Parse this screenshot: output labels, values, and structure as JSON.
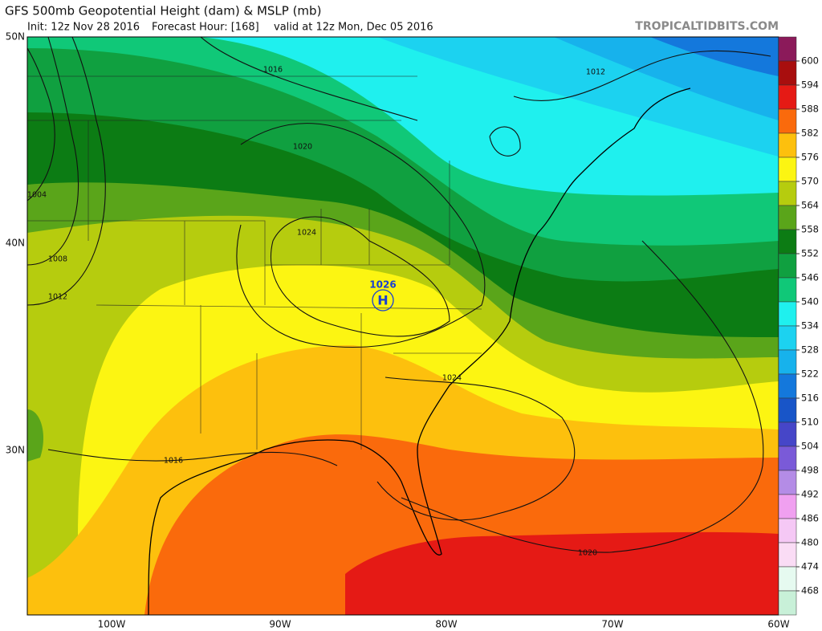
{
  "header": {
    "title": "GFS 500mb Geopotential Height (dam) & MSLP (mb)",
    "init": "Init: 12z Nov 28 2016",
    "forecast_hour": "Forecast Hour: [168]",
    "valid": "valid at 12z Mon, Dec 05 2016",
    "watermark": "TROPICALTIDBITS.COM"
  },
  "map": {
    "lat_labels": [
      "50N",
      "40N",
      "30N"
    ],
    "lon_labels": [
      "100W",
      "90W",
      "80W",
      "70W",
      "60W"
    ],
    "isobar_labels": [
      1016,
      1020,
      1004,
      1008,
      1012,
      1024,
      1024,
      1016,
      1020,
      1012
    ],
    "high_center": {
      "label": "H",
      "pressure": 1026
    }
  },
  "colorbar": {
    "levels": [
      600,
      594,
      588,
      582,
      576,
      570,
      564,
      558,
      552,
      546,
      540,
      534,
      528,
      522,
      516,
      510,
      504,
      498,
      492,
      486,
      480,
      474,
      468
    ],
    "colors": [
      "#8b1a5a",
      "#a80e0e",
      "#e51a15",
      "#fa6a0c",
      "#fdc00d",
      "#fcf512",
      "#b6cc0e",
      "#5aa51a",
      "#0c7c14",
      "#10a040",
      "#10c878",
      "#1ff0ee",
      "#1cd2f0",
      "#17b2ec",
      "#1478dc",
      "#1855c8",
      "#4646c8",
      "#7a5ad8",
      "#b48ce6",
      "#f0a0f0",
      "#f5c8f5",
      "#fadcf5",
      "#e6faf0",
      "#c8f0d8"
    ]
  }
}
